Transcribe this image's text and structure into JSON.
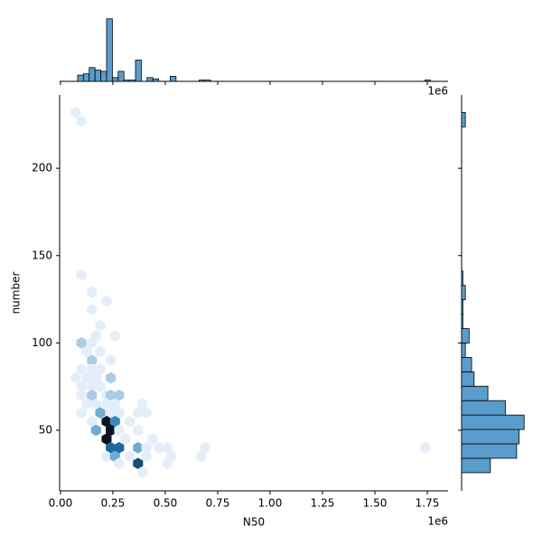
{
  "chart_data": [
    {
      "type": "hexbin",
      "x_label": "N50",
      "y_label": "number",
      "x_offset": "1e6",
      "xlim": [
        -0.004,
        1.849
      ],
      "ylim": [
        15.3,
        242
      ],
      "xticks": [
        {
          "value": 0,
          "label": "0.00"
        },
        0.25,
        {
          "value": 0.5,
          "label": "0.50"
        },
        0.75,
        {
          "value": 1,
          "label": "1.00"
        },
        1.25,
        {
          "value": 1.5,
          "label": "1.50"
        },
        1.75
      ],
      "yticks": [
        50,
        100,
        150,
        200
      ],
      "colors": [
        "#e4eef9",
        "#1f77b4",
        "#0a1520"
      ],
      "hexbins": [
        {
          "x": 0.073,
          "y": 232,
          "count": 1
        },
        {
          "x": 0.1,
          "y": 227,
          "count": 1
        },
        {
          "x": 0.1,
          "y": 139,
          "count": 1
        },
        {
          "x": 0.15,
          "y": 129,
          "count": 1
        },
        {
          "x": 0.15,
          "y": 119,
          "count": 1
        },
        {
          "x": 0.22,
          "y": 124,
          "count": 1
        },
        {
          "x": 0.19,
          "y": 110,
          "count": 1
        },
        {
          "x": 0.17,
          "y": 104,
          "count": 1
        },
        {
          "x": 0.26,
          "y": 104,
          "count": 1
        },
        {
          "x": 0.1,
          "y": 100,
          "count": 2
        },
        {
          "x": 0.15,
          "y": 100,
          "count": 1
        },
        {
          "x": 0.125,
          "y": 95,
          "count": 1
        },
        {
          "x": 0.15,
          "y": 90,
          "count": 2
        },
        {
          "x": 0.24,
          "y": 90,
          "count": 1
        },
        {
          "x": 0.19,
          "y": 95,
          "count": 1
        },
        {
          "x": 0.1,
          "y": 85,
          "count": 1
        },
        {
          "x": 0.15,
          "y": 85,
          "count": 1
        },
        {
          "x": 0.19,
          "y": 85,
          "count": 1
        },
        {
          "x": 0.073,
          "y": 80,
          "count": 1
        },
        {
          "x": 0.125,
          "y": 80,
          "count": 1
        },
        {
          "x": 0.24,
          "y": 80,
          "count": 2
        },
        {
          "x": 0.17,
          "y": 80,
          "count": 1
        },
        {
          "x": 0.1,
          "y": 75,
          "count": 1
        },
        {
          "x": 0.15,
          "y": 75,
          "count": 1
        },
        {
          "x": 0.19,
          "y": 75,
          "count": 1
        },
        {
          "x": 0.22,
          "y": 70,
          "count": 1
        },
        {
          "x": 0.15,
          "y": 70,
          "count": 2
        },
        {
          "x": 0.24,
          "y": 70,
          "count": 2
        },
        {
          "x": 0.28,
          "y": 70,
          "count": 2
        },
        {
          "x": 0.1,
          "y": 70,
          "count": 1
        },
        {
          "x": 0.125,
          "y": 65,
          "count": 1
        },
        {
          "x": 0.17,
          "y": 65,
          "count": 1
        },
        {
          "x": 0.22,
          "y": 65,
          "count": 1
        },
        {
          "x": 0.26,
          "y": 65,
          "count": 1
        },
        {
          "x": 0.39,
          "y": 65,
          "count": 1
        },
        {
          "x": 0.1,
          "y": 60,
          "count": 1
        },
        {
          "x": 0.19,
          "y": 60,
          "count": 3
        },
        {
          "x": 0.24,
          "y": 60,
          "count": 1
        },
        {
          "x": 0.28,
          "y": 60,
          "count": 1
        },
        {
          "x": 0.37,
          "y": 60,
          "count": 1
        },
        {
          "x": 0.41,
          "y": 60,
          "count": 1
        },
        {
          "x": 0.15,
          "y": 55,
          "count": 1
        },
        {
          "x": 0.22,
          "y": 55,
          "count": 8
        },
        {
          "x": 0.26,
          "y": 55,
          "count": 4
        },
        {
          "x": 0.33,
          "y": 55,
          "count": 1
        },
        {
          "x": 0.17,
          "y": 50,
          "count": 3
        },
        {
          "x": 0.24,
          "y": 50,
          "count": 8
        },
        {
          "x": 0.28,
          "y": 50,
          "count": 1
        },
        {
          "x": 0.37,
          "y": 50,
          "count": 1
        },
        {
          "x": 0.22,
          "y": 45,
          "count": 8
        },
        {
          "x": 0.31,
          "y": 45,
          "count": 1
        },
        {
          "x": 0.44,
          "y": 45,
          "count": 1
        },
        {
          "x": 0.24,
          "y": 40,
          "count": 5
        },
        {
          "x": 0.28,
          "y": 40,
          "count": 5
        },
        {
          "x": 0.37,
          "y": 40,
          "count": 3
        },
        {
          "x": 0.41,
          "y": 40,
          "count": 1
        },
        {
          "x": 0.47,
          "y": 40,
          "count": 1
        },
        {
          "x": 0.51,
          "y": 40,
          "count": 1
        },
        {
          "x": 0.69,
          "y": 40,
          "count": 1
        },
        {
          "x": 1.74,
          "y": 40,
          "count": 1
        },
        {
          "x": 0.22,
          "y": 35,
          "count": 1
        },
        {
          "x": 0.26,
          "y": 35,
          "count": 3
        },
        {
          "x": 0.33,
          "y": 35,
          "count": 1
        },
        {
          "x": 0.41,
          "y": 35,
          "count": 1
        },
        {
          "x": 0.53,
          "y": 35,
          "count": 1
        },
        {
          "x": 0.67,
          "y": 35,
          "count": 1
        },
        {
          "x": 0.28,
          "y": 31,
          "count": 1
        },
        {
          "x": 0.37,
          "y": 31,
          "count": 6
        },
        {
          "x": 0.51,
          "y": 31,
          "count": 1
        },
        {
          "x": 0.39,
          "y": 26,
          "count": 1
        }
      ]
    },
    {
      "type": "histogram",
      "orientation": "vertical",
      "color": "#5a9ccc",
      "ylim": [
        0,
        52
      ],
      "bins": [
        0.082,
        0.1096,
        0.1372,
        0.1648,
        0.1924,
        0.22,
        0.2476,
        0.2752,
        0.3028,
        0.3304,
        0.358,
        0.3856,
        0.4132,
        0.4408,
        0.4684,
        0.496,
        0.5236,
        0.5512,
        0.5788,
        0.6064,
        0.634,
        0.6616,
        0.6892,
        0.7168,
        0.7444,
        0.772,
        0.7996,
        0.8272,
        0.8548,
        0.8824,
        0.91,
        0.9376,
        0.9652,
        0.9928,
        1.0204,
        1.048,
        1.0756,
        1.1032,
        1.1308,
        1.1584,
        1.186,
        1.2136,
        1.2412,
        1.2688,
        1.2964,
        1.324,
        1.3516,
        1.3792,
        1.4068,
        1.4344,
        1.462,
        1.4896,
        1.5172,
        1.5448,
        1.5724,
        1.6,
        1.6276,
        1.6552,
        1.6828,
        1.7104,
        1.738,
        1.7656
      ],
      "counts": [
        5,
        6,
        11,
        9,
        8,
        50,
        3,
        8,
        1,
        1,
        17,
        0,
        3,
        2,
        0,
        0,
        4,
        0,
        0,
        0,
        0,
        1,
        1,
        0,
        0,
        0,
        0,
        0,
        0,
        0,
        0,
        0,
        0,
        0,
        0,
        0,
        0,
        0,
        0,
        0,
        0,
        0,
        0,
        0,
        0,
        0,
        0,
        0,
        0,
        0,
        0,
        0,
        0,
        0,
        0,
        0,
        0,
        0,
        0,
        0,
        1
      ]
    },
    {
      "type": "histogram",
      "orientation": "horizontal",
      "color": "#5a9ccc",
      "xlim": [
        0,
        52
      ],
      "bins": [
        25.7,
        33.95,
        42.2,
        50.45,
        58.7,
        66.95,
        75.2,
        83.45,
        91.7,
        99.95,
        108.2,
        116.45,
        124.7,
        132.95,
        141.2,
        149.45,
        157.7,
        165.95,
        174.2,
        182.45,
        190.7,
        198.95,
        207.2,
        215.45,
        223.7,
        231.95
      ],
      "counts": [
        23,
        44,
        46,
        50,
        35,
        21,
        10,
        8,
        3,
        6,
        1,
        1,
        3,
        1,
        0,
        0,
        0,
        0,
        0,
        0,
        0,
        0,
        0,
        0,
        3
      ]
    }
  ]
}
